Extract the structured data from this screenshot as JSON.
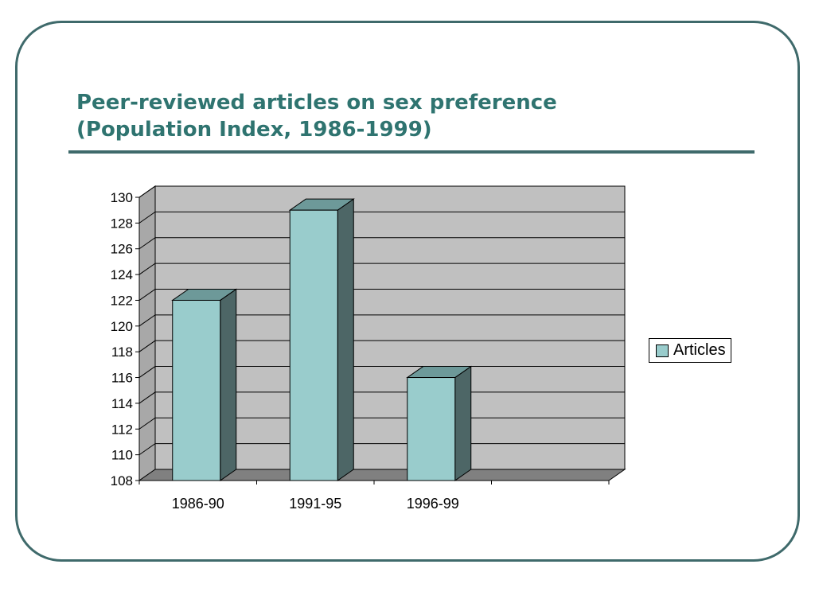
{
  "slide": {
    "title_line1": "Peer-reviewed articles on sex preference",
    "title_line2": "(Population Index, 1986-1999)"
  },
  "colors": {
    "frame": "#3f6a6b",
    "title": "#2f7470",
    "bar_front": "#99cccc",
    "bar_side": "#4d6666",
    "bar_top": "#6d9999",
    "plot_wall": "#c0c0c0",
    "plot_floor": "#808080"
  },
  "chart_data": {
    "type": "bar",
    "categories": [
      "1986-90",
      "1991-95",
      "1996-99"
    ],
    "series": [
      {
        "name": "Articles",
        "values": [
          122,
          129,
          116
        ]
      }
    ],
    "title": "",
    "xlabel": "",
    "ylabel": "",
    "ylim": [
      108,
      130
    ],
    "yticks": [
      108,
      110,
      112,
      114,
      116,
      118,
      120,
      122,
      124,
      126,
      128,
      130
    ],
    "grid": true,
    "legend": "right",
    "three_d": true
  }
}
